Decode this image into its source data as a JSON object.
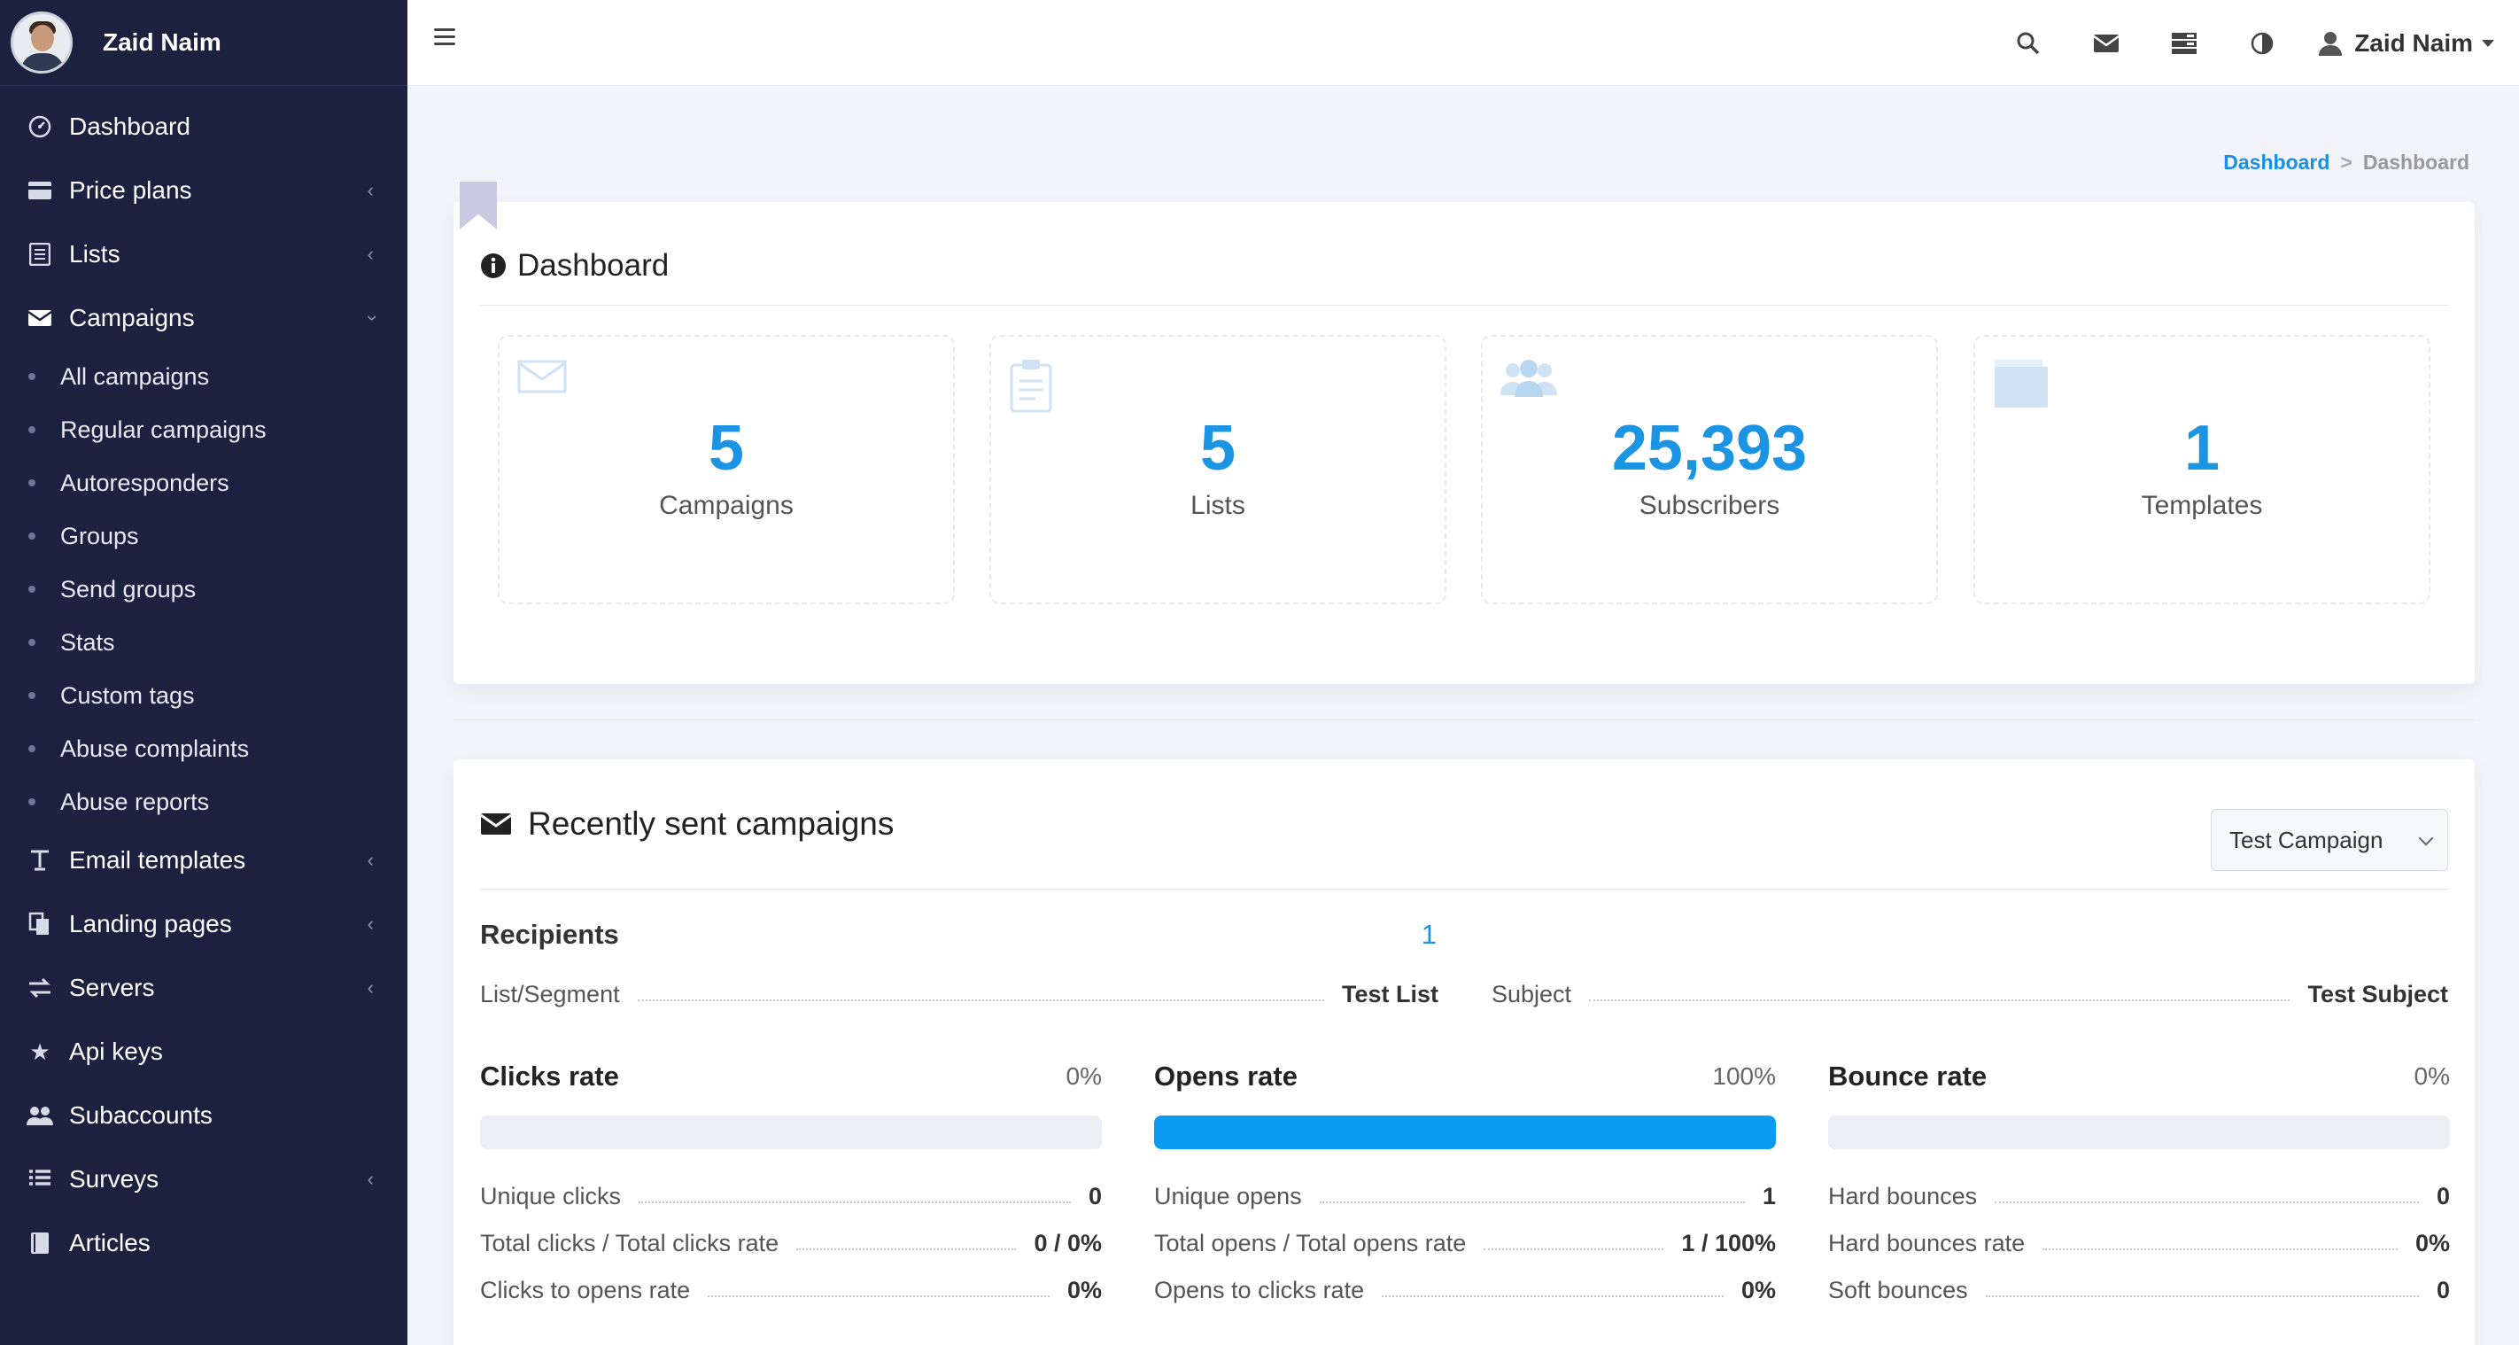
{
  "sidebar": {
    "username": "Zaid Naim",
    "items": [
      {
        "label": "Dashboard",
        "icon": "dashboard-icon"
      },
      {
        "label": "Price plans",
        "icon": "credit-card-icon"
      },
      {
        "label": "Lists",
        "icon": "list-icon"
      },
      {
        "label": "Campaigns",
        "icon": "envelope-icon"
      },
      {
        "label": "Email templates",
        "icon": "text-icon"
      },
      {
        "label": "Landing pages",
        "icon": "pages-icon"
      },
      {
        "label": "Servers",
        "icon": "transfer-icon"
      },
      {
        "label": "Api keys",
        "icon": "star-icon"
      },
      {
        "label": "Subaccounts",
        "icon": "users-icon"
      },
      {
        "label": "Surveys",
        "icon": "list-icon"
      },
      {
        "label": "Articles",
        "icon": "book-icon"
      }
    ],
    "campaign_sub": [
      "All campaigns",
      "Regular campaigns",
      "Autoresponders",
      "Groups",
      "Send groups",
      "Stats",
      "Custom tags",
      "Abuse complaints",
      "Abuse reports"
    ]
  },
  "topbar": {
    "user": "Zaid Naim"
  },
  "breadcrumb": {
    "link": "Dashboard",
    "separator": ">",
    "current": "Dashboard"
  },
  "dashboard": {
    "title": "Dashboard",
    "stats": [
      {
        "value": "5",
        "label": "Campaigns"
      },
      {
        "value": "5",
        "label": "Lists"
      },
      {
        "value": "25,393",
        "label": "Subscribers"
      },
      {
        "value": "1",
        "label": "Templates"
      }
    ]
  },
  "recent": {
    "title": "Recently sent campaigns",
    "selected_campaign": "Test Campaign",
    "recipients_label": "Recipients",
    "recipients_value": "1",
    "list_label": "List/Segment",
    "list_value": "Test List",
    "subject_label": "Subject",
    "subject_value": "Test Subject",
    "rates": [
      {
        "title": "Clicks rate",
        "percent": "0%",
        "fill": 0,
        "rows": [
          {
            "label": "Unique clicks",
            "value": "0"
          },
          {
            "label": "Total clicks / Total clicks rate",
            "value": "0 / 0%"
          },
          {
            "label": "Clicks to opens rate",
            "value": "0%"
          }
        ]
      },
      {
        "title": "Opens rate",
        "percent": "100%",
        "fill": 100,
        "rows": [
          {
            "label": "Unique opens",
            "value": "1"
          },
          {
            "label": "Total opens / Total opens rate",
            "value": "1 / 100%"
          },
          {
            "label": "Opens to clicks rate",
            "value": "0%"
          }
        ]
      },
      {
        "title": "Bounce rate",
        "percent": "0%",
        "fill": 0,
        "rows": [
          {
            "label": "Hard bounces",
            "value": "0"
          },
          {
            "label": "Hard bounces rate",
            "value": "0%"
          },
          {
            "label": "Soft bounces",
            "value": "0"
          }
        ]
      }
    ]
  },
  "colors": {
    "sidebar_bg": "#1c2140",
    "accent": "#1b95e3",
    "bar_fill": "#0b9bf0"
  }
}
